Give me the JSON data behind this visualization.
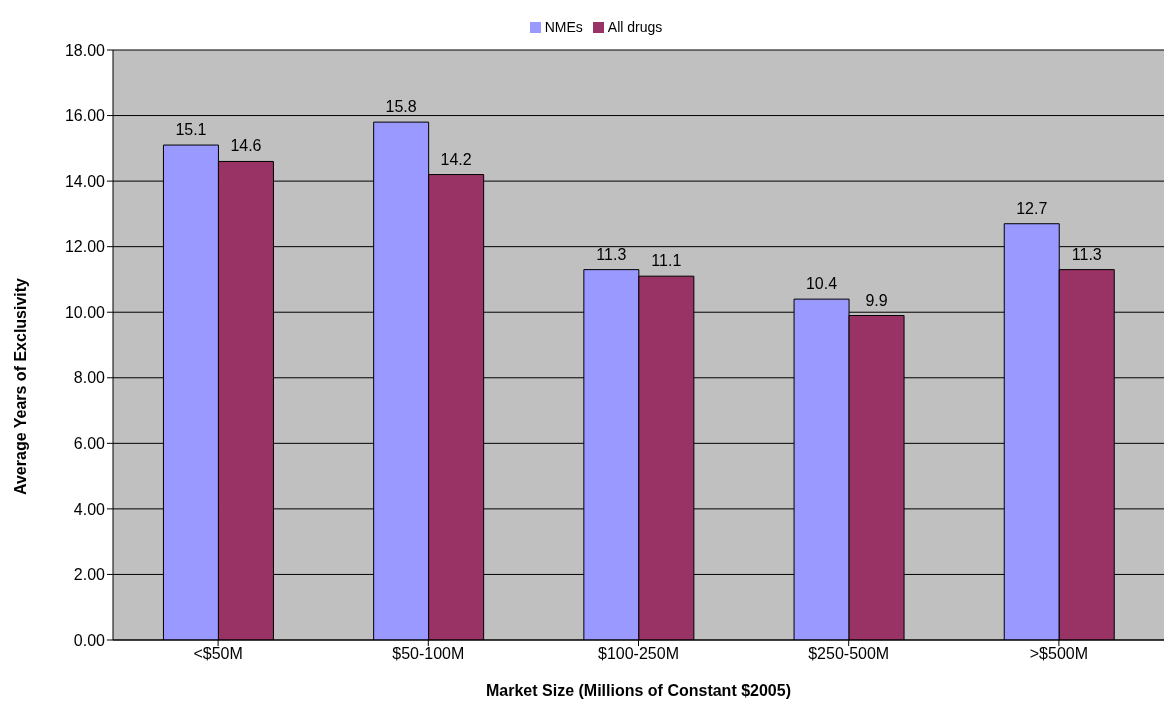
{
  "chart_data": {
    "type": "bar",
    "xlabel": "Market Size (Millions of Constant $2005)",
    "ylabel": "Average Years of Exclusivity",
    "categories": [
      "<$50M",
      "$50-100M",
      "$100-250M",
      "$250-500M",
      ">$500M"
    ],
    "series": [
      {
        "name": "NMEs",
        "color": "#9999ff",
        "values": [
          15.1,
          15.8,
          11.3,
          10.4,
          12.7
        ]
      },
      {
        "name": "All drugs",
        "color": "#993366",
        "values": [
          14.6,
          14.2,
          11.1,
          9.9,
          11.3
        ]
      }
    ],
    "ylim": [
      0,
      18
    ],
    "yticks": [
      {
        "value": 0,
        "label": "0.00"
      },
      {
        "value": 2,
        "label": "2.00"
      },
      {
        "value": 4,
        "label": "4.00"
      },
      {
        "value": 6,
        "label": "6.00"
      },
      {
        "value": 8,
        "label": "8.00"
      },
      {
        "value": 10,
        "label": "10.00"
      },
      {
        "value": 12,
        "label": "12.00"
      },
      {
        "value": 14,
        "label": "14.00"
      },
      {
        "value": 16,
        "label": "16.00"
      },
      {
        "value": 18,
        "label": "18.00"
      }
    ],
    "grid": "y",
    "legend": "top",
    "data_labels": true
  }
}
